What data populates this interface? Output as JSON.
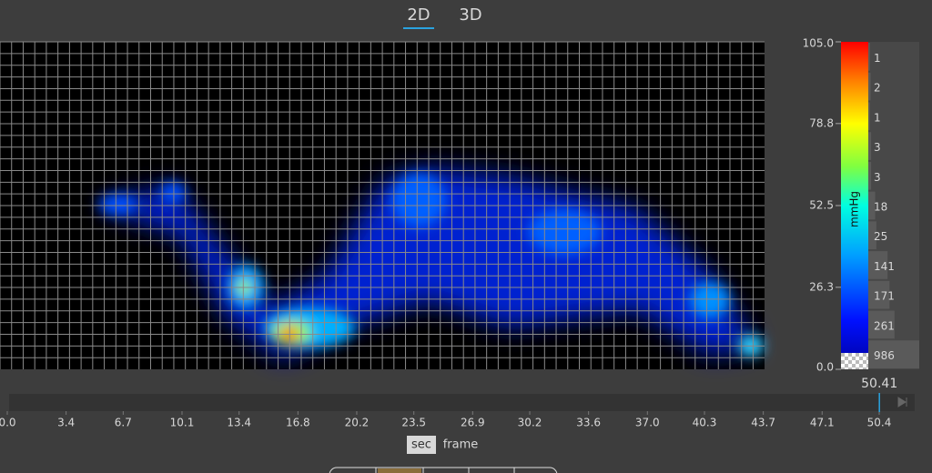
{
  "tabs": [
    "2D",
    "3D"
  ],
  "colorbar": {
    "unit": "mmHg",
    "ticks": [
      {
        "value": 0,
        "label": "0.0"
      },
      26.3,
      52.5,
      78.8,
      {
        "value": 105,
        "label": "105.0"
      }
    ]
  },
  "histogram": {
    "counts": [
      1,
      2,
      1,
      3,
      3,
      18,
      25,
      141,
      171,
      261,
      986
    ]
  },
  "timeline": {
    "ticks": [
      {
        "value": 0,
        "label": "0.0"
      },
      3.4,
      6.7,
      10.1,
      13.4,
      16.8,
      20.2,
      23.5,
      26.9,
      30.2,
      33.6,
      {
        "value": 37,
        "label": "37.0"
      },
      40.3,
      43.7,
      47.1,
      50.4
    ],
    "current": 50.41
  },
  "units": [
    "sec",
    "frame"
  ]
}
